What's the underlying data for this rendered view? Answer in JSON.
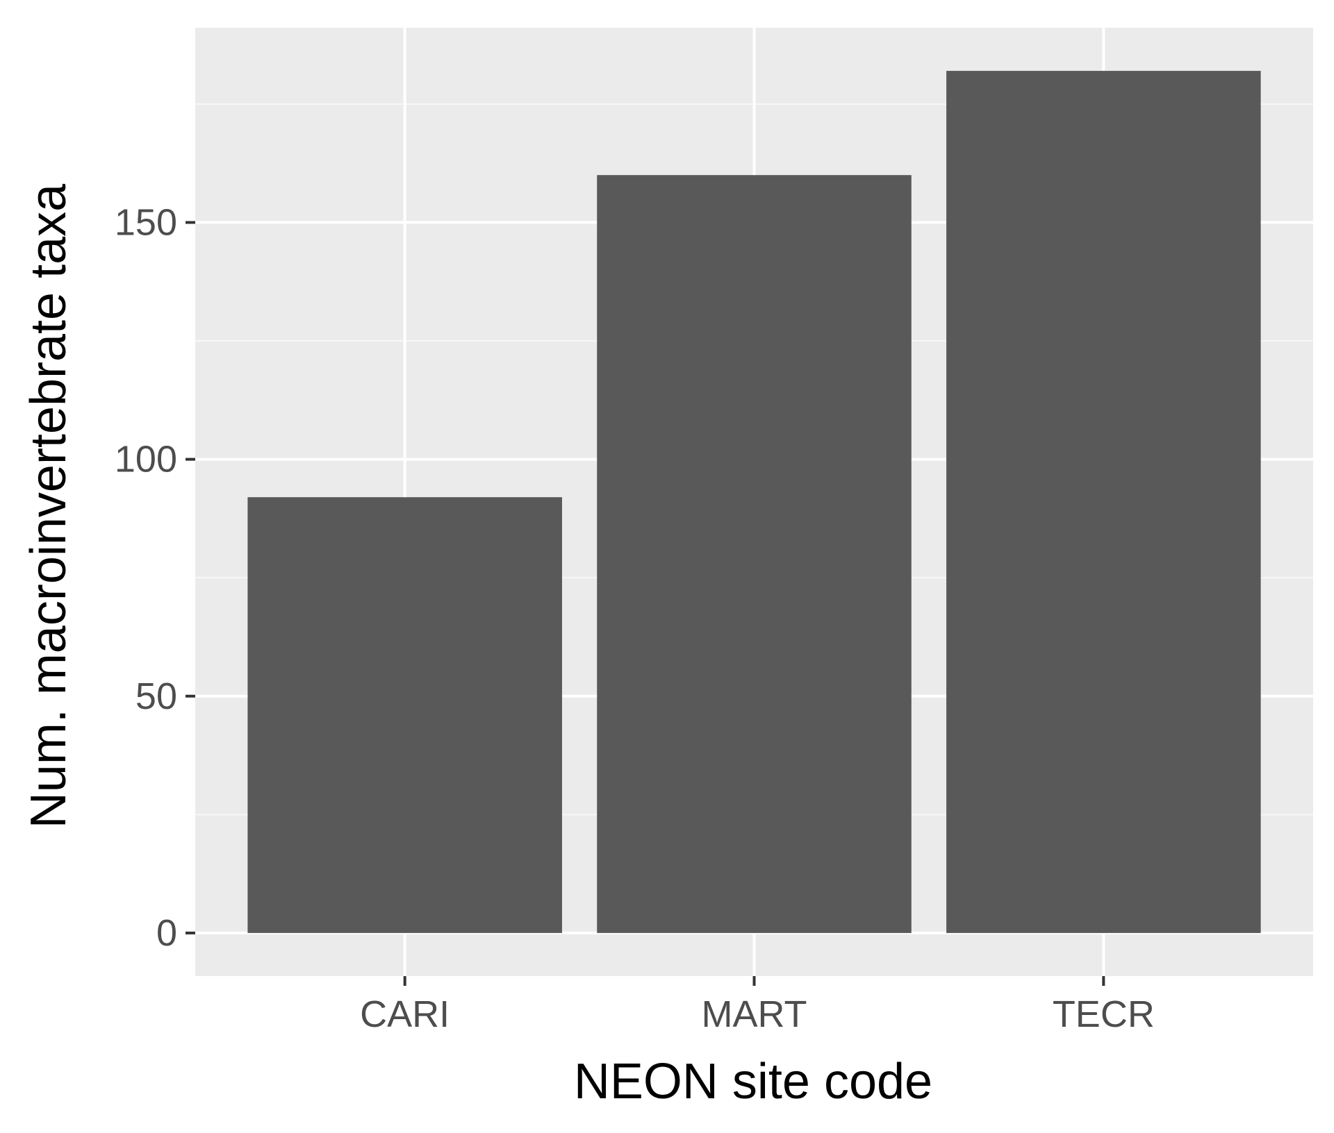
{
  "chart_data": {
    "type": "bar",
    "categories": [
      "CARI",
      "MART",
      "TECR"
    ],
    "values": [
      92,
      160,
      182
    ],
    "xlabel": "NEON site code",
    "ylabel": "Num. macroinvertebrate taxa",
    "ylim": [
      -9.1,
      191.1
    ],
    "yticks": [
      0,
      50,
      100,
      150
    ],
    "ytick_labels": [
      "0",
      "50",
      "100",
      "150"
    ],
    "grid": true,
    "legend": "none",
    "colors": {
      "panel_background": "#ebebeb",
      "grid_major": "#ffffff",
      "grid_minor": "#f7f7f7",
      "bar_fill": "#595959",
      "tick_mark": "#333333",
      "tick_label": "#4d4d4d",
      "axis_title": "#000000"
    }
  }
}
